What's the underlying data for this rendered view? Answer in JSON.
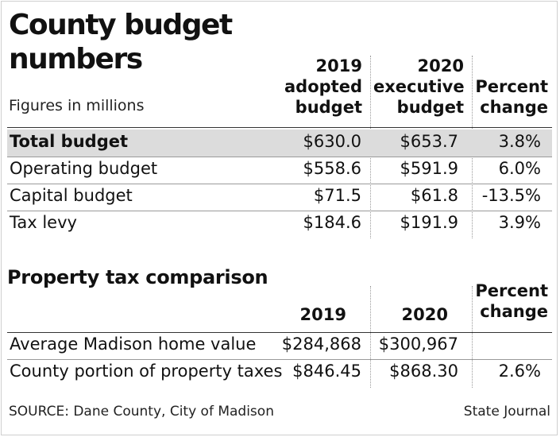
{
  "title_line1": "County budget",
  "title_line2": "numbers",
  "subtitle": "Figures in millions",
  "budget_table": {
    "headers": {
      "col1": "2019\nadopted\nbudget",
      "col2": "2020\nexecutive\nbudget",
      "col3": "Percent\nchange"
    },
    "rows": [
      {
        "label": "Total budget",
        "v2019": "$630.0",
        "v2020": "$653.7",
        "pct": "3.8%"
      },
      {
        "label": "Operating budget",
        "v2019": "$558.6",
        "v2020": "$591.9",
        "pct": "6.0%"
      },
      {
        "label": "Capital budget",
        "v2019": "$71.5",
        "v2020": "$61.8",
        "pct": "-13.5%"
      },
      {
        "label": "Tax levy",
        "v2019": "$184.6",
        "v2020": "$191.9",
        "pct": "3.9%"
      }
    ]
  },
  "property_table": {
    "title": "Property tax comparison",
    "headers": {
      "col1": "2019",
      "col2": "2020",
      "col3": "Percent\nchange"
    },
    "rows": [
      {
        "label": "Average Madison home value",
        "v2019": "$284,868",
        "v2020": "$300,967",
        "pct": ""
      },
      {
        "label": "County portion of property taxes",
        "v2019": "$846.45",
        "v2020": "$868.30",
        "pct": "2.6%"
      }
    ]
  },
  "footer": {
    "source": "SOURCE: Dane County, City of Madison",
    "credit": "State Journal"
  },
  "colors": {
    "highlight_row": "#dcdcdc",
    "text": "#111111"
  }
}
